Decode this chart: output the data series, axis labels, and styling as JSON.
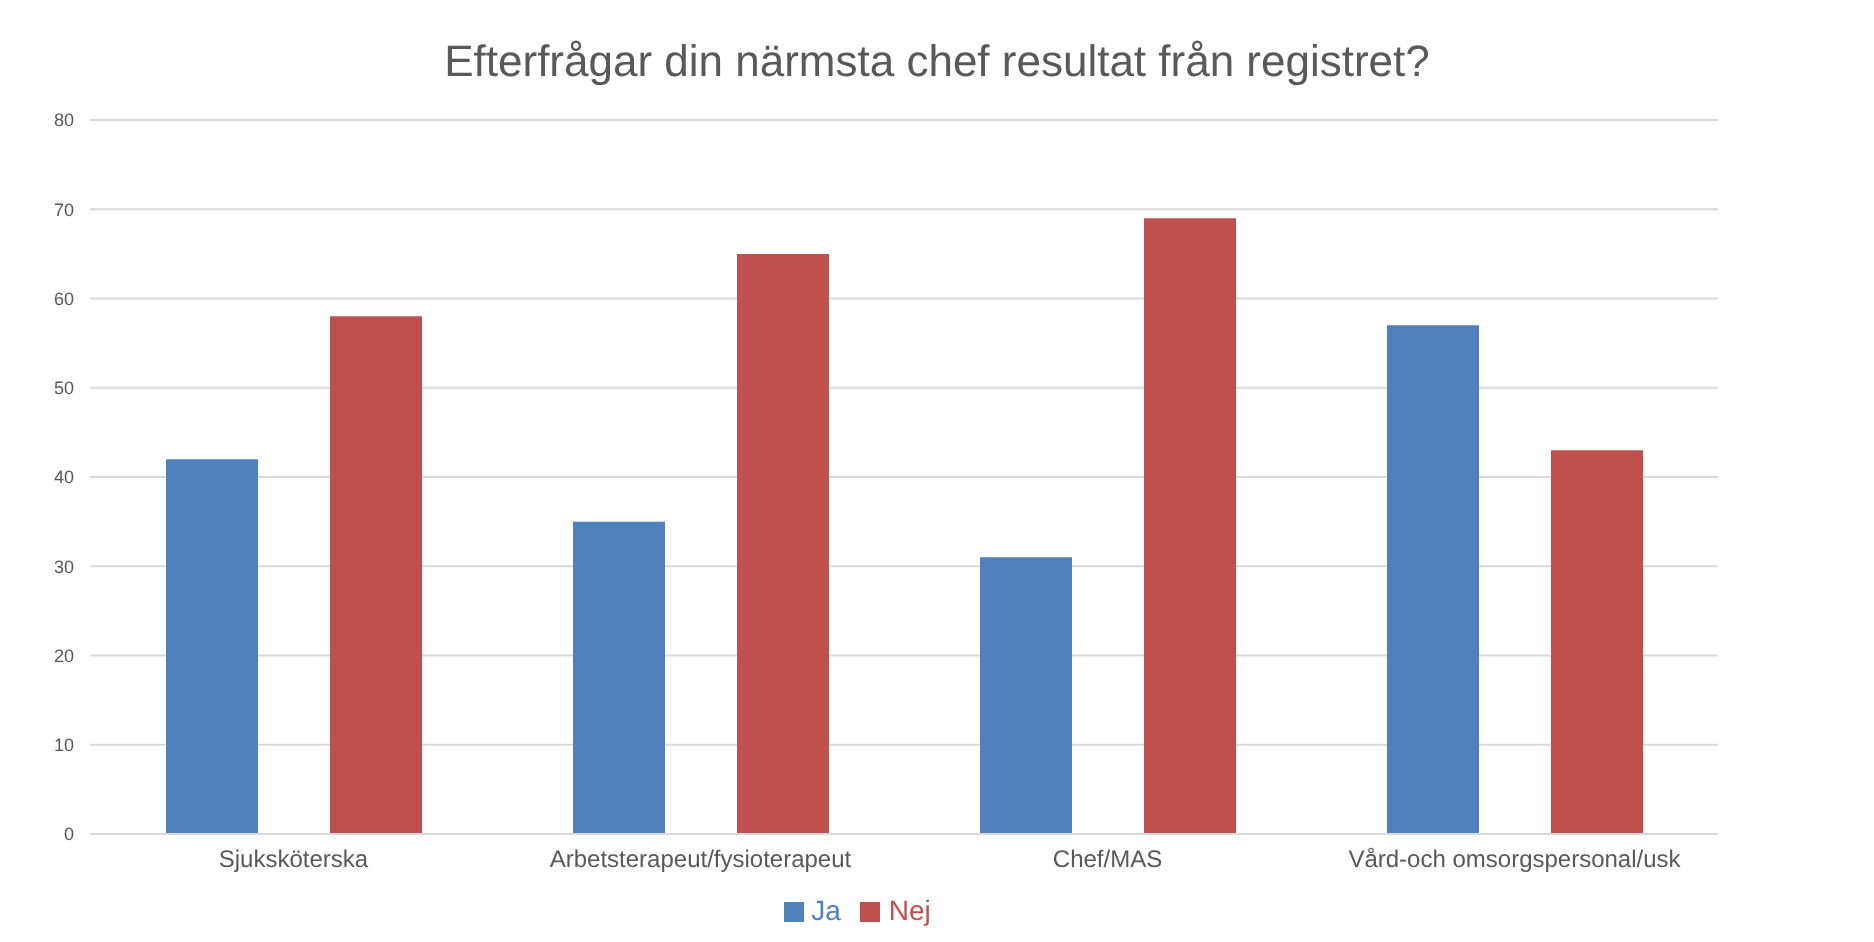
{
  "chart_data": {
    "type": "bar",
    "title": "Efterfrågar din närmsta chef resultat från registret?",
    "categories": [
      "Sjuksköterska",
      "Arbetsterapeut/fysioterapeut",
      "Chef/MAS",
      "Vård-och omsorgspersonal/usk"
    ],
    "series": [
      {
        "name": "Ja",
        "color": "#4f81bd",
        "values": [
          42,
          35,
          31,
          57
        ]
      },
      {
        "name": "Nej",
        "color": "#c0504d",
        "values": [
          58,
          65,
          69,
          43
        ]
      }
    ],
    "ylim": [
      0,
      80
    ],
    "yticks": [
      0,
      10,
      20,
      30,
      40,
      50,
      60,
      70,
      80
    ],
    "grid": "y",
    "legend": "bottom"
  }
}
